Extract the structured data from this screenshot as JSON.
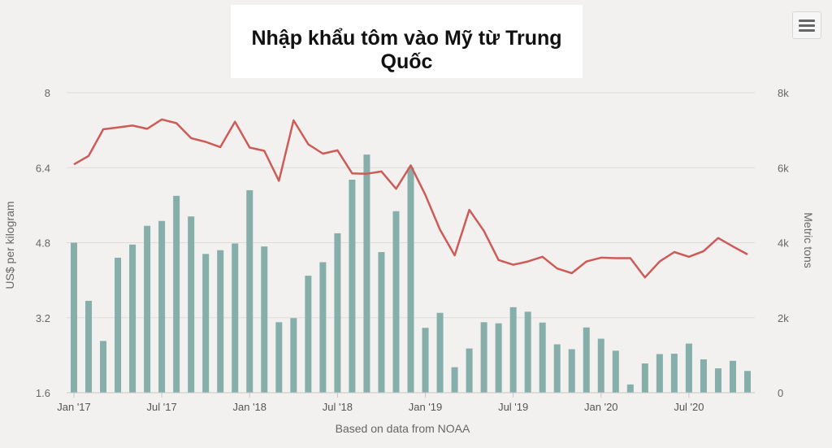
{
  "chart_data": {
    "type": "bar+line",
    "title": "Nhập khẩu tôm vào Mỹ từ Trung Quốc",
    "xlabel": "Based on data from NOAA",
    "ylabel_left": "US$ per kilogram",
    "ylabel_right": "Metric tons",
    "y_left": {
      "min": 1.6,
      "max": 8,
      "ticks": [
        "1.6",
        "3.2",
        "4.8",
        "6.4",
        "8"
      ],
      "tick_values": [
        1.6,
        3.2,
        4.8,
        6.4,
        8
      ]
    },
    "y_right": {
      "min": 0,
      "max": 8000,
      "ticks": [
        "0",
        "2k",
        "4k",
        "6k",
        "8k"
      ],
      "tick_values": [
        0,
        2000,
        4000,
        6000,
        8000
      ]
    },
    "x_tick_labels": [
      "Jan '17",
      "Jul '17",
      "Jan '18",
      "Jul '18",
      "Jan '19",
      "Jul '19",
      "Jan '20",
      "Jul '20"
    ],
    "x_tick_month_index": [
      0,
      6,
      12,
      18,
      24,
      30,
      36,
      42
    ],
    "months": 47,
    "series": [
      {
        "name": "Metric tons",
        "type": "bar",
        "axis": "right",
        "color": "#86aeab",
        "values": [
          4000,
          2450,
          1380,
          3600,
          3950,
          4450,
          4580,
          5250,
          4700,
          3700,
          3800,
          3980,
          5400,
          3900,
          1880,
          1990,
          3120,
          3480,
          4250,
          5680,
          6350,
          3750,
          4840,
          6000,
          1730,
          2130,
          680,
          1180,
          1880,
          1850,
          2280,
          2160,
          1870,
          1290,
          1160,
          1740,
          1440,
          1120,
          220,
          780,
          1030,
          1040,
          1310,
          890,
          650,
          850,
          580
        ]
      },
      {
        "name": "US$ per kilogram",
        "type": "line",
        "axis": "left",
        "color": "#cd5b57",
        "values": [
          6.47,
          6.65,
          7.22,
          7.26,
          7.3,
          7.23,
          7.43,
          7.35,
          7.03,
          6.95,
          6.84,
          7.38,
          6.83,
          6.76,
          6.12,
          7.41,
          6.9,
          6.7,
          6.77,
          6.28,
          6.27,
          6.32,
          5.95,
          6.45,
          5.82,
          5.08,
          4.53,
          5.5,
          5.05,
          4.43,
          4.33,
          4.4,
          4.5,
          4.25,
          4.15,
          4.4,
          4.48,
          4.47,
          4.47,
          4.06,
          4.4,
          4.6,
          4.5,
          4.62,
          4.9,
          4.72,
          4.55
        ]
      }
    ],
    "legend": "none",
    "grid": true
  }
}
